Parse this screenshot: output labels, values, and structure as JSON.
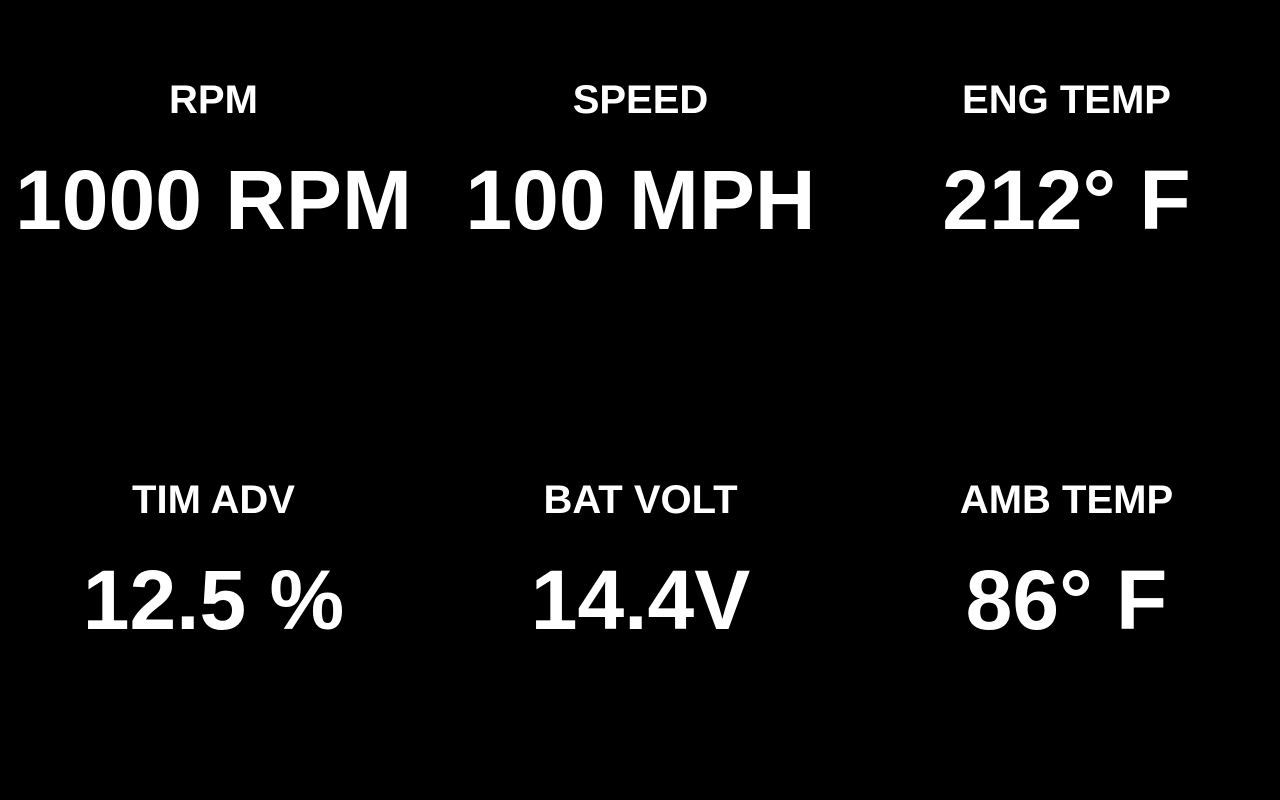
{
  "theme": {
    "background": "#000000",
    "text_color": "#ffffff"
  },
  "gauges": [
    {
      "label": "RPM",
      "value": "1000 RPM"
    },
    {
      "label": "SPEED",
      "value": "100 MPH"
    },
    {
      "label": "ENG TEMP",
      "value": "212° F"
    },
    {
      "label": "TIM ADV",
      "value": "12.5 %"
    },
    {
      "label": "BAT VOLT",
      "value": "14.4V"
    },
    {
      "label": "AMB TEMP",
      "value": "86° F"
    }
  ]
}
